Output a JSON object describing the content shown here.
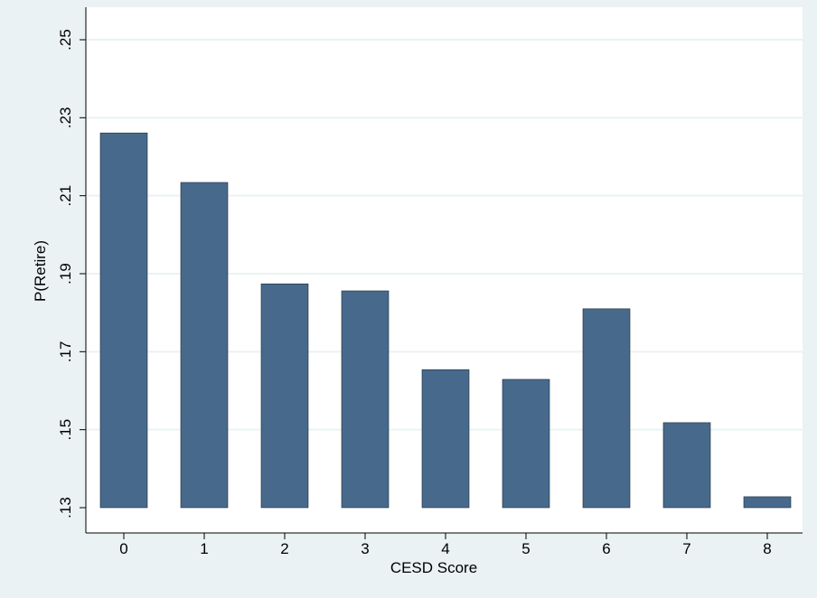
{
  "chart_data": {
    "type": "bar",
    "x_label": "CESD Score",
    "y_label": "P(Retire)",
    "categories": [
      "0",
      "1",
      "2",
      "3",
      "4",
      "5",
      "6",
      "7",
      "8"
    ],
    "values": [
      0.2261,
      0.2134,
      0.1874,
      0.1856,
      0.1654,
      0.1629,
      0.181,
      0.1518,
      0.1328
    ],
    "color": "#476a8c",
    "ylim": [
      0.13,
      0.25
    ],
    "yticks": [
      {
        "value": 0.13,
        "label": ".13"
      },
      {
        "value": 0.15,
        "label": ".15"
      },
      {
        "value": 0.17,
        "label": ".17"
      },
      {
        "value": 0.19,
        "label": ".19"
      },
      {
        "value": 0.21,
        "label": ".21"
      },
      {
        "value": 0.23,
        "label": ".23"
      },
      {
        "value": 0.25,
        "label": ".25"
      }
    ],
    "grid": true
  }
}
